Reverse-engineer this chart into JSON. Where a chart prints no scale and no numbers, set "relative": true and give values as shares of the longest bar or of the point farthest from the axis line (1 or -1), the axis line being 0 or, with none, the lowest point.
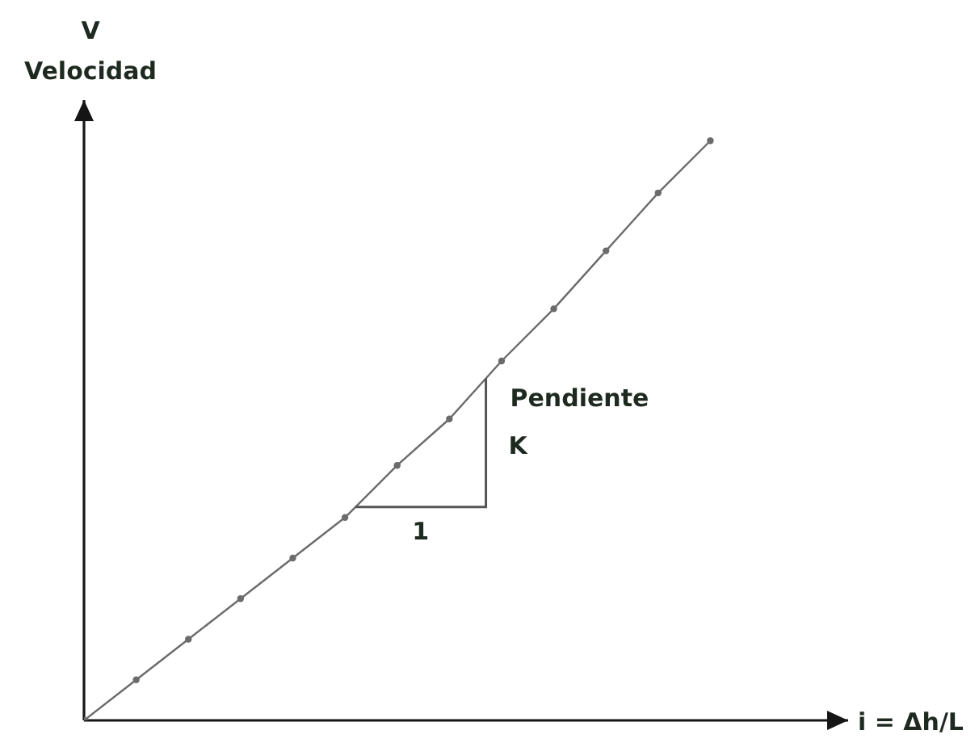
{
  "chart_data": {
    "type": "line",
    "ylabel": "V\nVelocidad",
    "annotations": [
      "Pendiente",
      "K",
      "1",
      "i = Δh/L"
    ],
    "categories": [
      null,
      null,
      null,
      null,
      null,
      null,
      null,
      null,
      null,
      null,
      null,
      null,
      null
    ],
    "series": [
      {
        "color": "#6b6b6b",
        "values": [
          0,
          0.07,
          0.14,
          0.21,
          0.28,
          0.35,
          0.44,
          0.52,
          0.62,
          0.71,
          0.81,
          0.91,
          1
        ]
      }
    ],
    "relative": true,
    "marker": "circle"
  }
}
